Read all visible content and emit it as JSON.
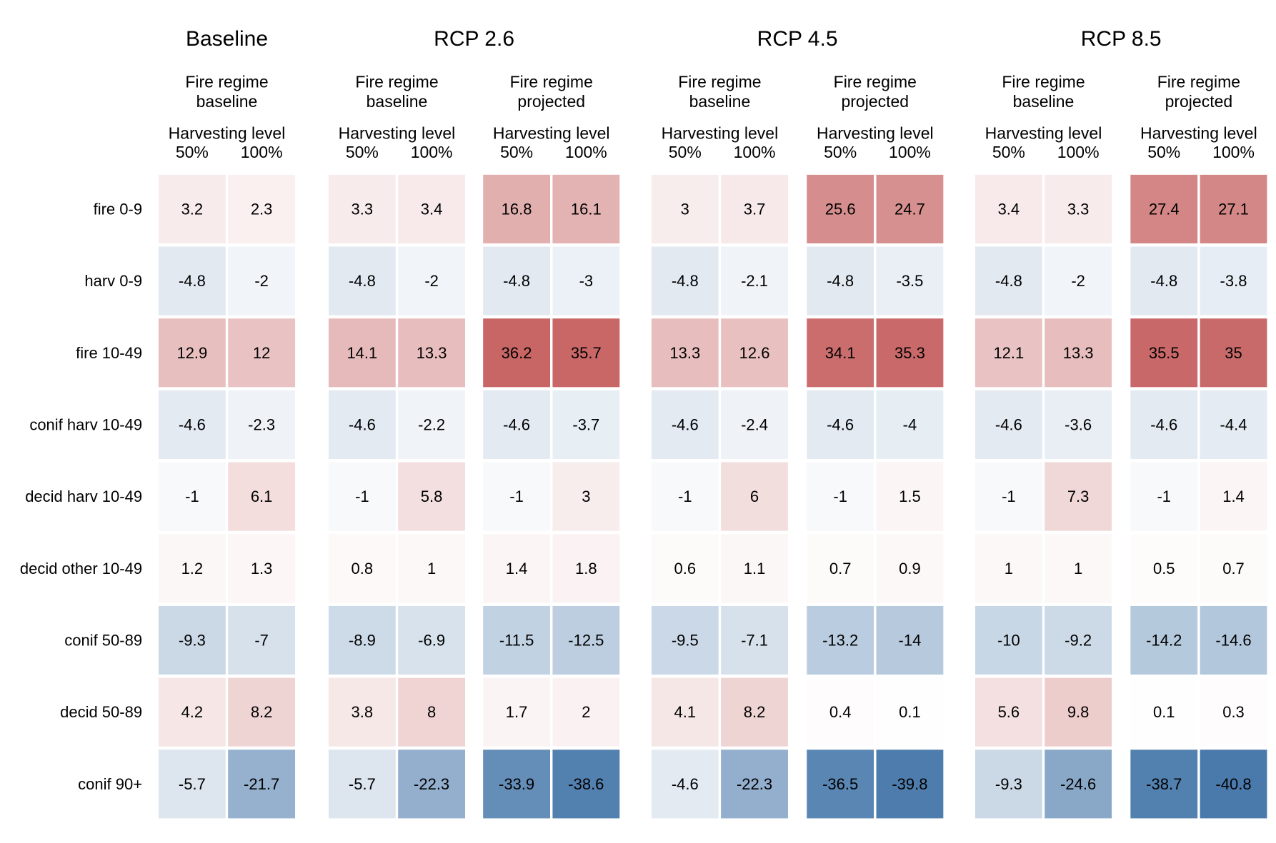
{
  "chart_data": {
    "type": "heatmap",
    "scenarios": [
      {
        "title": "Baseline",
        "groups": [
          {
            "label_line1": "Fire regime",
            "label_line2": "baseline",
            "harvest_title": "Harvesting level",
            "columns": [
              "50%",
              "100%"
            ],
            "values": [
              [
                3.2,
                2.3
              ],
              [
                -4.8,
                -2
              ],
              [
                12.9,
                12
              ],
              [
                -4.6,
                -2.3
              ],
              [
                -1,
                6.1
              ],
              [
                1.2,
                1.3
              ],
              [
                -9.3,
                -7
              ],
              [
                4.2,
                8.2
              ],
              [
                -5.7,
                -21.7
              ]
            ]
          }
        ]
      },
      {
        "title": "RCP 2.6",
        "groups": [
          {
            "label_line1": "Fire regime",
            "label_line2": "baseline",
            "harvest_title": "Harvesting level",
            "columns": [
              "50%",
              "100%"
            ],
            "values": [
              [
                3.3,
                3.4
              ],
              [
                -4.8,
                -2
              ],
              [
                14.1,
                13.3
              ],
              [
                -4.6,
                -2.2
              ],
              [
                -1,
                5.8
              ],
              [
                0.8,
                1
              ],
              [
                -8.9,
                -6.9
              ],
              [
                3.8,
                8
              ],
              [
                -5.7,
                -22.3
              ]
            ]
          },
          {
            "label_line1": "Fire regime",
            "label_line2": "projected",
            "harvest_title": "Harvesting level",
            "columns": [
              "50%",
              "100%"
            ],
            "values": [
              [
                16.8,
                16.1
              ],
              [
                -4.8,
                -3
              ],
              [
                36.2,
                35.7
              ],
              [
                -4.6,
                -3.7
              ],
              [
                -1,
                3
              ],
              [
                1.4,
                1.8
              ],
              [
                -11.5,
                -12.5
              ],
              [
                1.7,
                2
              ],
              [
                -33.9,
                -38.6
              ]
            ]
          }
        ]
      },
      {
        "title": "RCP 4.5",
        "groups": [
          {
            "label_line1": "Fire regime",
            "label_line2": "baseline",
            "harvest_title": "Harvesting level",
            "columns": [
              "50%",
              "100%"
            ],
            "values": [
              [
                3,
                3.7
              ],
              [
                -4.8,
                -2.1
              ],
              [
                13.3,
                12.6
              ],
              [
                -4.6,
                -2.4
              ],
              [
                -1,
                6
              ],
              [
                0.6,
                1.1
              ],
              [
                -9.5,
                -7.1
              ],
              [
                4.1,
                8.2
              ],
              [
                -4.6,
                -22.3
              ]
            ]
          },
          {
            "label_line1": "Fire regime",
            "label_line2": "projected",
            "harvest_title": "Harvesting level",
            "columns": [
              "50%",
              "100%"
            ],
            "values": [
              [
                25.6,
                24.7
              ],
              [
                -4.8,
                -3.5
              ],
              [
                34.1,
                35.3
              ],
              [
                -4.6,
                -4
              ],
              [
                -1,
                1.5
              ],
              [
                0.7,
                0.9
              ],
              [
                -13.2,
                -14
              ],
              [
                0.4,
                0.1
              ],
              [
                -36.5,
                -39.8
              ]
            ]
          }
        ]
      },
      {
        "title": "RCP 8.5",
        "groups": [
          {
            "label_line1": "Fire regime",
            "label_line2": "baseline",
            "harvest_title": "Harvesting level",
            "columns": [
              "50%",
              "100%"
            ],
            "values": [
              [
                3.4,
                3.3
              ],
              [
                -4.8,
                -2
              ],
              [
                12.1,
                13.3
              ],
              [
                -4.6,
                -3.6
              ],
              [
                -1,
                7.3
              ],
              [
                1,
                1
              ],
              [
                -10,
                -9.2
              ],
              [
                5.6,
                9.8
              ],
              [
                -9.3,
                -24.6
              ]
            ]
          },
          {
            "label_line1": "Fire regime",
            "label_line2": "projected",
            "harvest_title": "Harvesting level",
            "columns": [
              "50%",
              "100%"
            ],
            "values": [
              [
                27.4,
                27.1
              ],
              [
                -4.8,
                -3.8
              ],
              [
                35.5,
                35
              ],
              [
                -4.6,
                -4.4
              ],
              [
                -1,
                1.4
              ],
              [
                0.5,
                0.7
              ],
              [
                -14.2,
                -14.6
              ],
              [
                0.1,
                0.3
              ],
              [
                -38.7,
                -40.8
              ]
            ]
          }
        ]
      }
    ],
    "rows": [
      "fire 0-9",
      "harv 0-9",
      "fire 10-49",
      "conif harv 10-49",
      "decid harv 10-49",
      "decid other 10-49",
      "conif 50-89",
      "decid 50-89",
      "conif 90+"
    ],
    "color_scale": {
      "negative_color": "#4a7aab",
      "zero_color": "#ffffff",
      "positive_color": "#c25555",
      "max_abs": 40.8
    }
  }
}
